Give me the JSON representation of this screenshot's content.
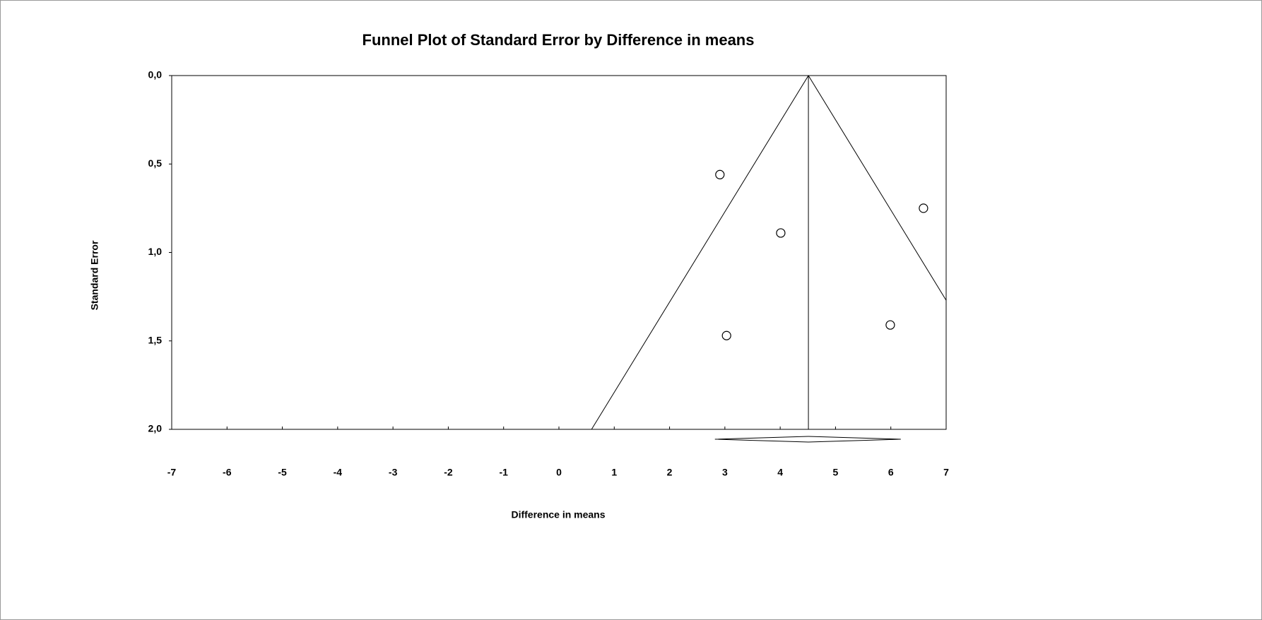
{
  "chart_data": {
    "type": "funnel",
    "title": "Funnel Plot of Standard Error by Difference in means",
    "xlabel": "Difference in means",
    "ylabel": "Standard Error",
    "x": [
      2.91,
      4.01,
      6.59,
      3.03,
      5.99
    ],
    "values": [
      0.56,
      0.89,
      0.75,
      1.47,
      1.41
    ],
    "summary": {
      "estimate": 4.51,
      "ci": [
        2.82,
        6.18
      ]
    },
    "pseudo_ci_z": 1.96,
    "xlim": [
      -7,
      7
    ],
    "xticks": [
      -7,
      -6,
      -5,
      -4,
      -3,
      -2,
      -1,
      0,
      1,
      2,
      3,
      4,
      5,
      6,
      7
    ],
    "ylim": [
      0,
      2
    ],
    "y_reversed": true,
    "yticks": [
      {
        "value": 0,
        "label": "0,0"
      },
      {
        "value": 0.5,
        "label": "0,5"
      },
      {
        "value": 1,
        "label": "1,0"
      },
      {
        "value": 1.5,
        "label": "1,5"
      },
      {
        "value": 2,
        "label": "2,0"
      }
    ],
    "color": "#000000"
  }
}
